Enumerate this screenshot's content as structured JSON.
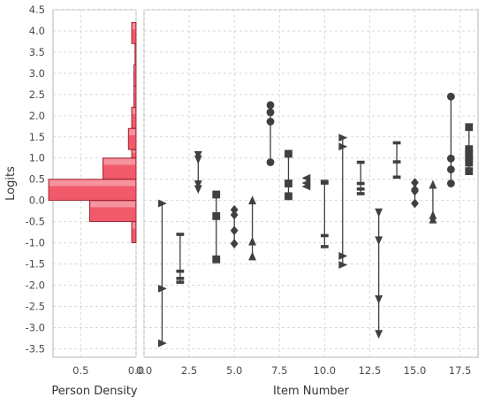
{
  "chart_data": [
    {
      "type": "bar",
      "orientation": "horizontal",
      "xlabel": "Person Density",
      "ylabel": "Logits",
      "x_reversed": true,
      "xlim": [
        0.75,
        0
      ],
      "ylim": [
        -3.7,
        4.5
      ],
      "x_ticks": [
        "0.5",
        "0.0"
      ],
      "y_ticks": [
        "4.5",
        "4.0",
        "3.5",
        "3.0",
        "2.5",
        "2.0",
        "1.5",
        "1.0",
        "0.5",
        "0.0",
        "-0.5",
        "-1.0",
        "-1.5",
        "-2.0",
        "-2.5",
        "-3.0",
        "-3.5"
      ],
      "bar_color": "#f05a6a",
      "bins": [
        {
          "y0": 3.7,
          "y1": 4.2,
          "density": 0.04
        },
        {
          "y0": 3.2,
          "y1": 3.7,
          "density": 0.01
        },
        {
          "y0": 2.7,
          "y1": 3.2,
          "density": 0.02
        },
        {
          "y0": 2.2,
          "y1": 2.7,
          "density": 0.02
        },
        {
          "y0": 1.7,
          "y1": 2.2,
          "density": 0.04
        },
        {
          "y0": 1.2,
          "y1": 1.7,
          "density": 0.07
        },
        {
          "y0": 1.0,
          "y1": 1.2,
          "density": 0.04
        },
        {
          "y0": 0.5,
          "y1": 1.0,
          "density": 0.3
        },
        {
          "y0": 0.0,
          "y1": 0.5,
          "density": 0.79
        },
        {
          "y0": -0.5,
          "y1": 0.0,
          "density": 0.42
        },
        {
          "y0": -1.0,
          "y1": -0.5,
          "density": 0.04
        }
      ],
      "grid": true
    },
    {
      "type": "scatter",
      "xlabel": "Item Number",
      "xlim": [
        0,
        18.5
      ],
      "ylim": [
        -3.7,
        4.5
      ],
      "x_ticks": [
        0.0,
        2.5,
        5.0,
        7.5,
        10.0,
        12.5,
        15.0,
        17.5
      ],
      "x_tick_labels": [
        "0.0",
        "2.5",
        "5.0",
        "7.5",
        "10.0",
        "12.5",
        "15.0",
        "17.5"
      ],
      "marker_color": "#404040",
      "grid": true,
      "items": [
        {
          "item": 1,
          "marker": "triangle-right",
          "values": [
            -0.07,
            -2.08,
            -3.37
          ]
        },
        {
          "item": 2,
          "marker": "bar",
          "values": [
            -0.8,
            -1.67,
            -1.84,
            -1.93
          ]
        },
        {
          "item": 3,
          "marker": "triangle-down",
          "values": [
            1.07,
            0.97,
            0.38,
            0.27
          ]
        },
        {
          "item": 4,
          "marker": "square",
          "values": [
            0.14,
            -0.37,
            -1.39
          ]
        },
        {
          "item": 5,
          "marker": "diamond",
          "values": [
            -0.22,
            -0.34,
            -0.71,
            -1.02
          ]
        },
        {
          "item": 6,
          "marker": "triangle-up",
          "values": [
            0.0,
            -0.97,
            -1.32
          ]
        },
        {
          "item": 7,
          "marker": "circle",
          "values": [
            2.25,
            2.08,
            1.86,
            0.9
          ]
        },
        {
          "item": 8,
          "marker": "square",
          "values": [
            1.1,
            0.4,
            0.1
          ]
        },
        {
          "item": 9,
          "marker": "triangle-left",
          "values": [
            0.53,
            0.41,
            0.33
          ]
        },
        {
          "item": 10,
          "marker": "bar",
          "values": [
            0.45,
            0.41,
            -0.83,
            -1.09
          ]
        },
        {
          "item": 11,
          "marker": "triangle-right",
          "values": [
            1.48,
            1.27,
            -1.31,
            -1.52
          ]
        },
        {
          "item": 12,
          "marker": "bar",
          "values": [
            0.9,
            0.4,
            0.27,
            0.16
          ]
        },
        {
          "item": 13,
          "marker": "triangle-down",
          "values": [
            -0.28,
            -0.94,
            -2.33,
            -3.15
          ]
        },
        {
          "item": 14,
          "marker": "bar",
          "values": [
            1.36,
            0.91,
            0.55
          ]
        },
        {
          "item": 15,
          "marker": "diamond",
          "values": [
            0.42,
            0.26,
            0.22,
            -0.07
          ]
        },
        {
          "item": 16,
          "marker": "triangle-up",
          "values": [
            0.37,
            -0.35,
            -0.45
          ]
        },
        {
          "item": 17,
          "marker": "circle",
          "values": [
            2.45,
            0.99,
            0.73,
            0.4
          ]
        },
        {
          "item": 18,
          "marker": "square",
          "values": [
            1.73,
            1.21,
            1.11,
            1.0,
            0.89,
            0.69
          ]
        }
      ]
    }
  ]
}
